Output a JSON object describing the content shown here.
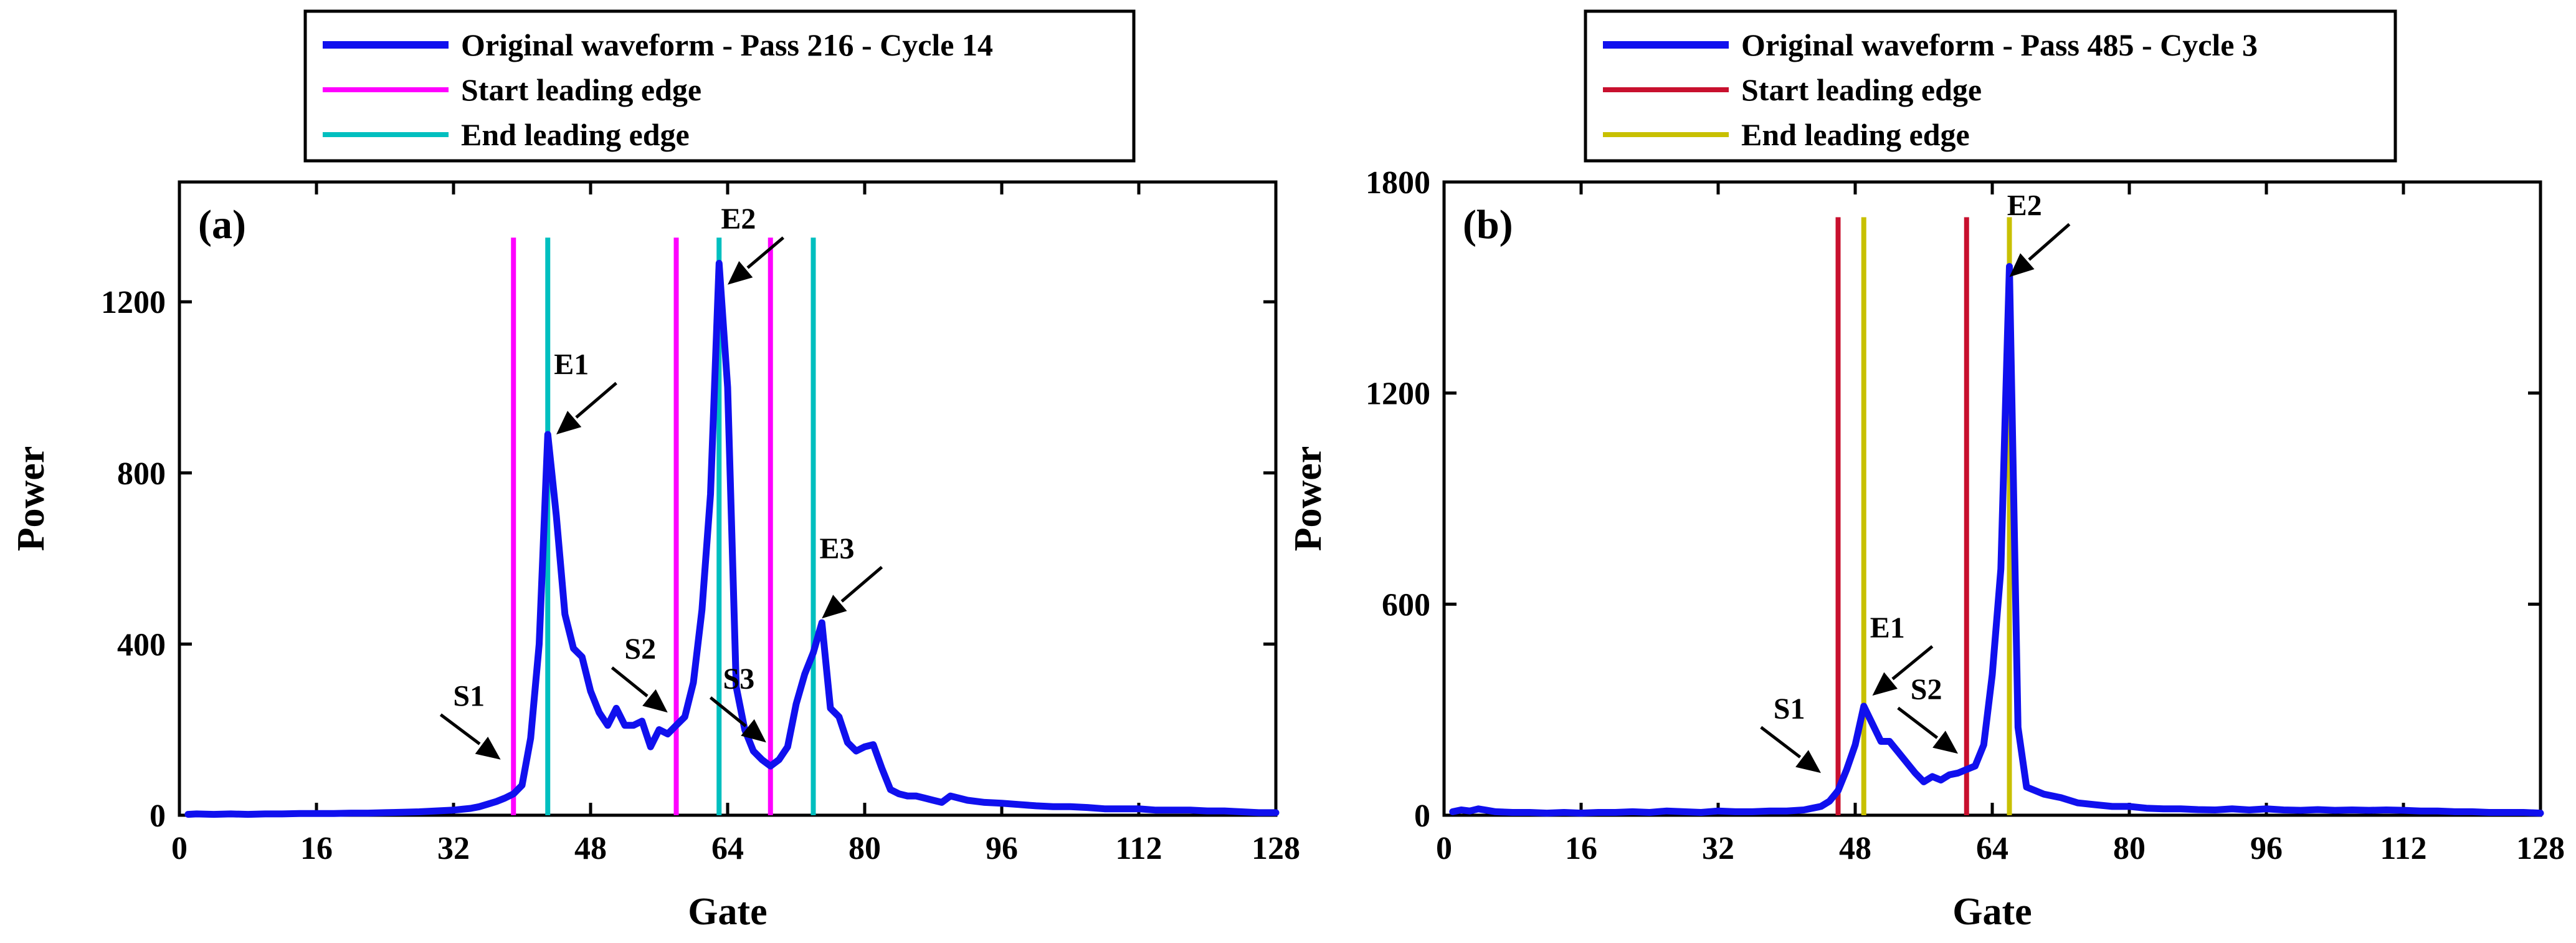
{
  "colors": {
    "waveform": "#1010ee",
    "magenta": "#ff00ff",
    "cyan": "#00bfbf",
    "red": "#c8102e",
    "olive": "#c8c000",
    "arrow": "#000000"
  },
  "chart_data": [
    {
      "type": "line",
      "panel_label": "(a)",
      "xlabel": "Gate",
      "ylabel": "Power",
      "xlim": [
        0,
        128
      ],
      "ylim": [
        0,
        1480
      ],
      "xticks": [
        0,
        16,
        32,
        48,
        64,
        80,
        96,
        112,
        128
      ],
      "yticks": [
        0,
        400,
        800,
        1200
      ],
      "xtick_labels": [
        "0",
        "16",
        "32",
        "48",
        "64",
        "80",
        "96",
        "112",
        "128"
      ],
      "ytick_labels": [
        "0",
        "400",
        "800",
        "1200"
      ],
      "legend": [
        {
          "label": "Original waveform - Pass 216 - Cycle 14",
          "color": "#1010ee"
        },
        {
          "label": "Start leading edge",
          "color": "#ff00ff"
        },
        {
          "label": "End leading edge",
          "color": "#00bfbf"
        }
      ],
      "series": [
        {
          "name": "Original waveform - Pass 216 - Cycle 14",
          "color": "#1010ee",
          "x": [
            1,
            2,
            4,
            6,
            8,
            10,
            12,
            14,
            16,
            18,
            20,
            22,
            24,
            26,
            28,
            30,
            32,
            33,
            34,
            35,
            36,
            37,
            38,
            39,
            40,
            41,
            42,
            43,
            44,
            45,
            46,
            47,
            48,
            49,
            50,
            51,
            52,
            53,
            54,
            55,
            56,
            57,
            58,
            59,
            60,
            61,
            62,
            63,
            64,
            65,
            66,
            67,
            68,
            69,
            70,
            71,
            72,
            73,
            74,
            75,
            76,
            77,
            78,
            79,
            80,
            81,
            82,
            83,
            84,
            85,
            86,
            87,
            88,
            89,
            90,
            92,
            94,
            96,
            98,
            100,
            102,
            104,
            106,
            108,
            110,
            112,
            114,
            116,
            118,
            120,
            122,
            124,
            126,
            128
          ],
          "y": [
            2,
            3,
            2,
            3,
            2,
            3,
            3,
            4,
            4,
            4,
            5,
            5,
            6,
            7,
            8,
            10,
            12,
            14,
            16,
            20,
            26,
            32,
            40,
            50,
            70,
            180,
            400,
            890,
            700,
            470,
            390,
            370,
            290,
            240,
            210,
            250,
            210,
            210,
            220,
            160,
            200,
            190,
            210,
            230,
            310,
            480,
            750,
            1290,
            1000,
            300,
            200,
            150,
            130,
            115,
            130,
            160,
            260,
            330,
            380,
            450,
            250,
            230,
            170,
            150,
            160,
            165,
            110,
            60,
            50,
            45,
            45,
            40,
            35,
            30,
            45,
            35,
            30,
            28,
            25,
            22,
            20,
            20,
            18,
            15,
            15,
            15,
            12,
            12,
            12,
            10,
            10,
            8,
            6,
            6
          ]
        }
      ],
      "vlines": [
        {
          "role": "Start leading edge",
          "x": 39,
          "color": "#ff00ff"
        },
        {
          "role": "End leading edge",
          "x": 43,
          "color": "#00bfbf"
        },
        {
          "role": "Start leading edge",
          "x": 58,
          "color": "#ff00ff"
        },
        {
          "role": "End leading edge",
          "x": 63,
          "color": "#00bfbf"
        },
        {
          "role": "Start leading edge",
          "x": 69,
          "color": "#ff00ff"
        },
        {
          "role": "End leading edge",
          "x": 74,
          "color": "#00bfbf"
        }
      ],
      "vline_top": 1350,
      "annotations": [
        {
          "text": "S1",
          "target": [
            37.5,
            130
          ],
          "tail": [
            30.5,
            235
          ]
        },
        {
          "text": "E1",
          "target": [
            44,
            890
          ],
          "tail": [
            51,
            1010
          ]
        },
        {
          "text": "S2",
          "target": [
            57,
            240
          ],
          "tail": [
            50.5,
            345
          ]
        },
        {
          "text": "E2",
          "target": [
            64,
            1240
          ],
          "tail": [
            70.5,
            1350
          ]
        },
        {
          "text": "S3",
          "target": [
            68.5,
            170
          ],
          "tail": [
            62,
            275
          ]
        },
        {
          "text": "E3",
          "target": [
            75,
            460
          ],
          "tail": [
            82,
            580
          ]
        }
      ]
    },
    {
      "type": "line",
      "panel_label": "(b)",
      "xlabel": "Gate",
      "ylabel": "Power",
      "xlim": [
        0,
        128
      ],
      "ylim": [
        0,
        1800
      ],
      "xticks": [
        0,
        16,
        32,
        48,
        64,
        80,
        96,
        112,
        128
      ],
      "yticks": [
        0,
        600,
        1200,
        1800
      ],
      "xtick_labels": [
        "0",
        "16",
        "32",
        "48",
        "64",
        "80",
        "96",
        "112",
        "128"
      ],
      "ytick_labels": [
        "0",
        "600",
        "1200",
        "1800"
      ],
      "legend": [
        {
          "label": "Original waveform - Pass 485 - Cycle 3",
          "color": "#1010ee"
        },
        {
          "label": "Start leading edge",
          "color": "#c8102e"
        },
        {
          "label": "End leading edge",
          "color": "#c8c000"
        }
      ],
      "series": [
        {
          "name": "Original waveform - Pass 485 - Cycle 3",
          "color": "#1010ee",
          "x": [
            1,
            2,
            3,
            4,
            5,
            6,
            8,
            10,
            12,
            14,
            16,
            18,
            20,
            22,
            24,
            26,
            28,
            30,
            32,
            34,
            36,
            38,
            40,
            42,
            43,
            44,
            45,
            46,
            47,
            48,
            49,
            50,
            51,
            52,
            53,
            54,
            55,
            56,
            57,
            58,
            59,
            60,
            61,
            62,
            63,
            64,
            65,
            66,
            67,
            68,
            70,
            72,
            74,
            76,
            78,
            80,
            82,
            84,
            86,
            88,
            90,
            92,
            94,
            96,
            98,
            100,
            102,
            104,
            106,
            108,
            110,
            112,
            114,
            116,
            118,
            120,
            122,
            124,
            126,
            128
          ],
          "y": [
            10,
            15,
            12,
            18,
            14,
            10,
            8,
            8,
            6,
            8,
            6,
            8,
            8,
            10,
            8,
            12,
            10,
            8,
            12,
            10,
            10,
            12,
            12,
            15,
            20,
            25,
            40,
            70,
            130,
            200,
            310,
            260,
            210,
            210,
            180,
            150,
            120,
            95,
            110,
            100,
            115,
            120,
            130,
            140,
            200,
            400,
            700,
            1560,
            250,
            80,
            60,
            50,
            35,
            30,
            25,
            25,
            20,
            18,
            18,
            16,
            15,
            18,
            15,
            18,
            15,
            14,
            16,
            14,
            15,
            14,
            15,
            14,
            12,
            12,
            10,
            10,
            8,
            8,
            8,
            6
          ]
        }
      ],
      "vlines": [
        {
          "role": "Start leading edge",
          "x": 46,
          "color": "#c8102e"
        },
        {
          "role": "End leading edge",
          "x": 49,
          "color": "#c8c000"
        },
        {
          "role": "Start leading edge",
          "x": 61,
          "color": "#c8102e"
        },
        {
          "role": "End leading edge",
          "x": 66,
          "color": "#c8c000"
        }
      ],
      "vline_top": 1700,
      "annotations": [
        {
          "text": "S1",
          "target": [
            44,
            120
          ],
          "tail": [
            37,
            250
          ]
        },
        {
          "text": "E1",
          "target": [
            50,
            340
          ],
          "tail": [
            57,
            480
          ]
        },
        {
          "text": "S2",
          "target": [
            60,
            175
          ],
          "tail": [
            53,
            305
          ]
        },
        {
          "text": "E2",
          "target": [
            66,
            1530
          ],
          "tail": [
            73,
            1680
          ]
        }
      ]
    }
  ]
}
